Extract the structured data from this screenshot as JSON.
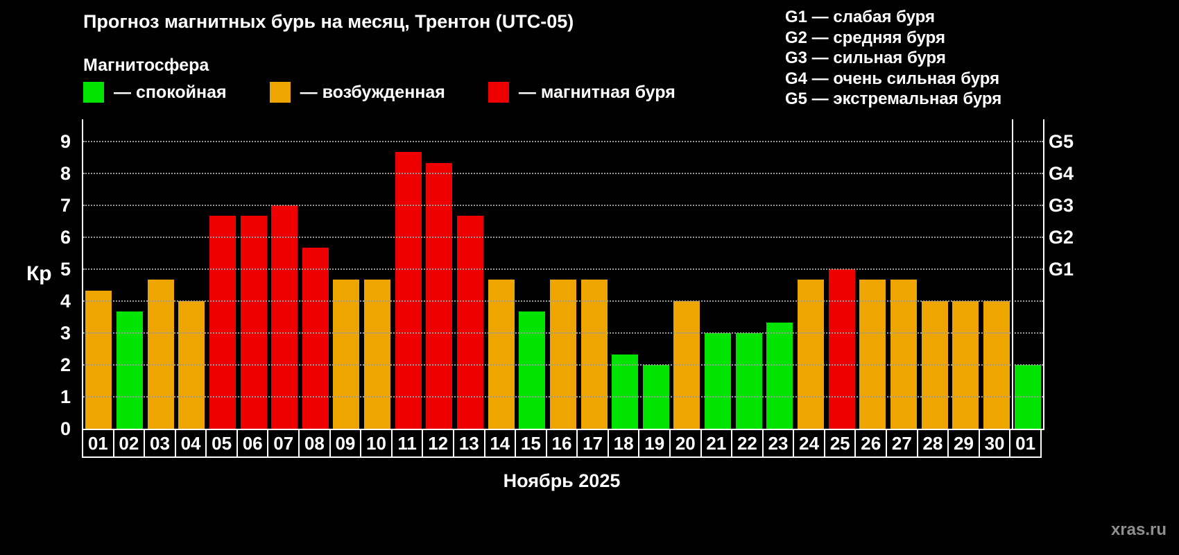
{
  "header": {
    "title": "Прогноз магнитных бурь на месяц, Трентон (UTC-05)",
    "subtitle": "Магнитосфера",
    "legend": [
      {
        "status": "quiet",
        "label": "— спокойная",
        "color": "#00e400"
      },
      {
        "status": "excited",
        "label": "— возбужденная",
        "color": "#eea500"
      },
      {
        "status": "storm",
        "label": "— магнитная буря",
        "color": "#ee0000"
      }
    ],
    "g_legend": [
      "G1 — слабая буря",
      "G2 — средняя буря",
      "G3 — сильная буря",
      "G4 — очень сильная буря",
      "G5 — экстремальная буря"
    ]
  },
  "chart_data": {
    "type": "bar",
    "title": "Прогноз магнитных бурь на месяц, Трентон (UTC-05)",
    "ylabel": "Кр",
    "xlabel": "Ноябрь 2025",
    "ylim": [
      0,
      9
    ],
    "yticks": [
      0,
      1,
      2,
      3,
      4,
      5,
      6,
      7,
      8,
      9
    ],
    "grid": "horizontal-dotted",
    "legend_position": "top-left",
    "right_axis": [
      {
        "label": "G1",
        "kp": 5
      },
      {
        "label": "G2",
        "kp": 6
      },
      {
        "label": "G3",
        "kp": 7
      },
      {
        "label": "G4",
        "kp": 8
      },
      {
        "label": "G5",
        "kp": 9
      }
    ],
    "categories": [
      "01",
      "02",
      "03",
      "04",
      "05",
      "06",
      "07",
      "08",
      "09",
      "10",
      "11",
      "12",
      "13",
      "14",
      "15",
      "16",
      "17",
      "18",
      "19",
      "20",
      "21",
      "22",
      "23",
      "24",
      "25",
      "26",
      "27",
      "28",
      "29",
      "30",
      "01"
    ],
    "values": [
      4.33,
      3.67,
      4.67,
      4.0,
      6.67,
      6.67,
      7.0,
      5.67,
      4.67,
      4.67,
      8.67,
      8.33,
      6.67,
      4.67,
      3.67,
      4.67,
      4.67,
      2.33,
      2.0,
      4.0,
      3.0,
      3.0,
      3.33,
      4.67,
      5.0,
      4.67,
      4.67,
      4.0,
      4.0,
      4.0,
      2.0
    ],
    "statuses": [
      "excited",
      "quiet",
      "excited",
      "excited",
      "storm",
      "storm",
      "storm",
      "storm",
      "excited",
      "excited",
      "storm",
      "storm",
      "storm",
      "excited",
      "quiet",
      "excited",
      "excited",
      "quiet",
      "quiet",
      "excited",
      "quiet",
      "quiet",
      "quiet",
      "excited",
      "storm",
      "excited",
      "excited",
      "excited",
      "excited",
      "excited",
      "quiet"
    ],
    "colors": {
      "quiet": "#00e400",
      "excited": "#eea500",
      "storm": "#ee0000"
    },
    "month_boundary_index": 30
  },
  "footer": {
    "month_label": "Ноябрь 2025",
    "watermark": "xras.ru"
  }
}
